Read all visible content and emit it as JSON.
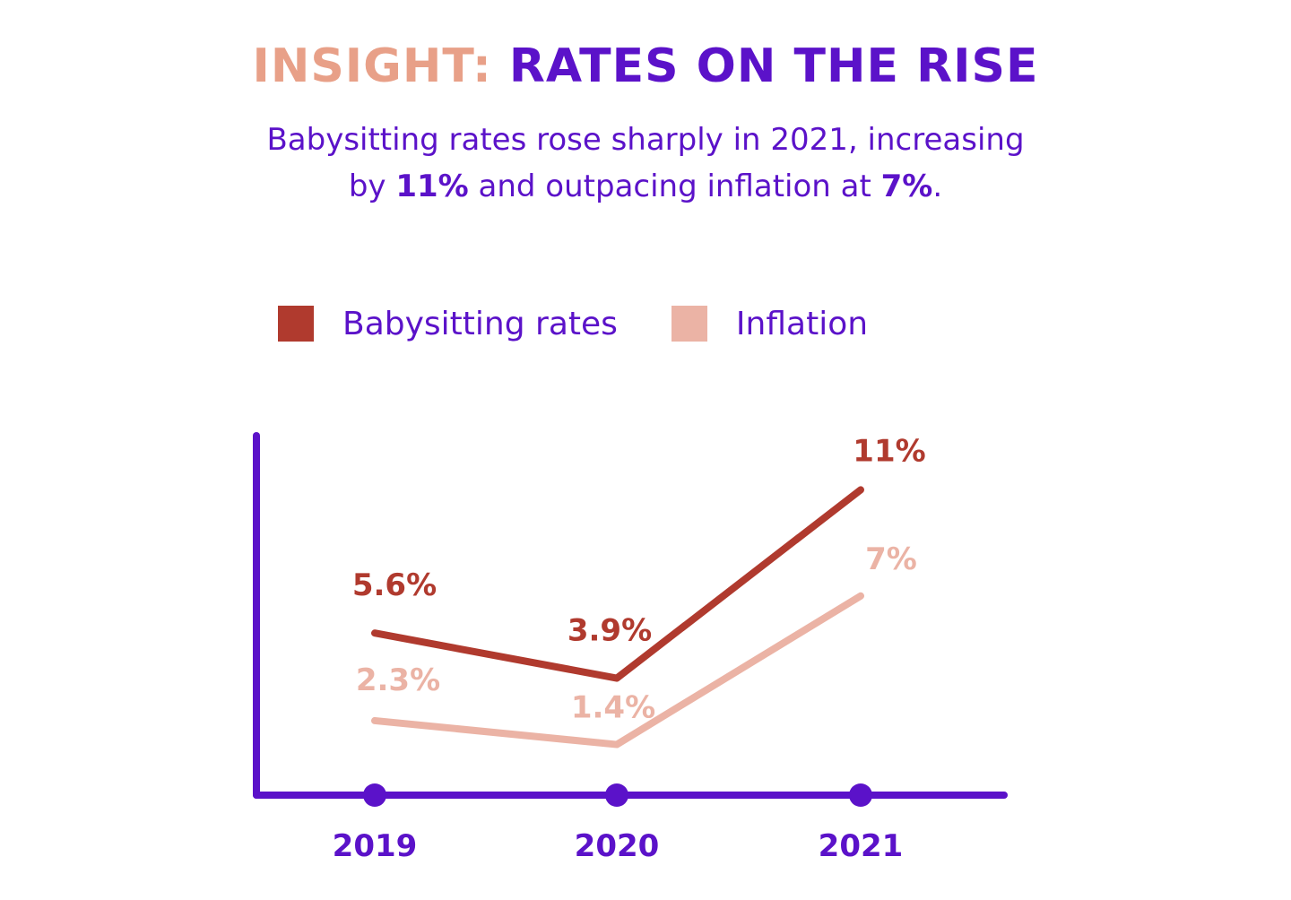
{
  "header": {
    "title_prefix": "INSIGHT:",
    "title_main": "RATES ON THE RISE",
    "subtitle_line1": "Babysitting rates rose sharply in 2021, increasing",
    "subtitle_by": "by ",
    "subtitle_value1": "11%",
    "subtitle_mid": " and outpacing inflation at ",
    "subtitle_value2": "7%",
    "subtitle_end": "."
  },
  "colors": {
    "accent": "#e8a088",
    "primary": "#5b12c9",
    "babysitting": "#b03a2e",
    "inflation": "#ebb3a5"
  },
  "chart_data": {
    "type": "line",
    "title": "INSIGHT: RATES ON THE RISE",
    "categories": [
      "2019",
      "2020",
      "2021"
    ],
    "xlabel": "",
    "ylabel": "",
    "grid": false,
    "legend_position": "top",
    "series": [
      {
        "name": "Babysitting rates",
        "values": [
          5.6,
          3.9,
          11
        ],
        "labels": [
          "5.6%",
          "3.9%",
          "11%"
        ]
      },
      {
        "name": "Inflation",
        "values": [
          2.3,
          1.4,
          7
        ],
        "labels": [
          "2.3%",
          "1.4%",
          "7%"
        ]
      }
    ]
  }
}
